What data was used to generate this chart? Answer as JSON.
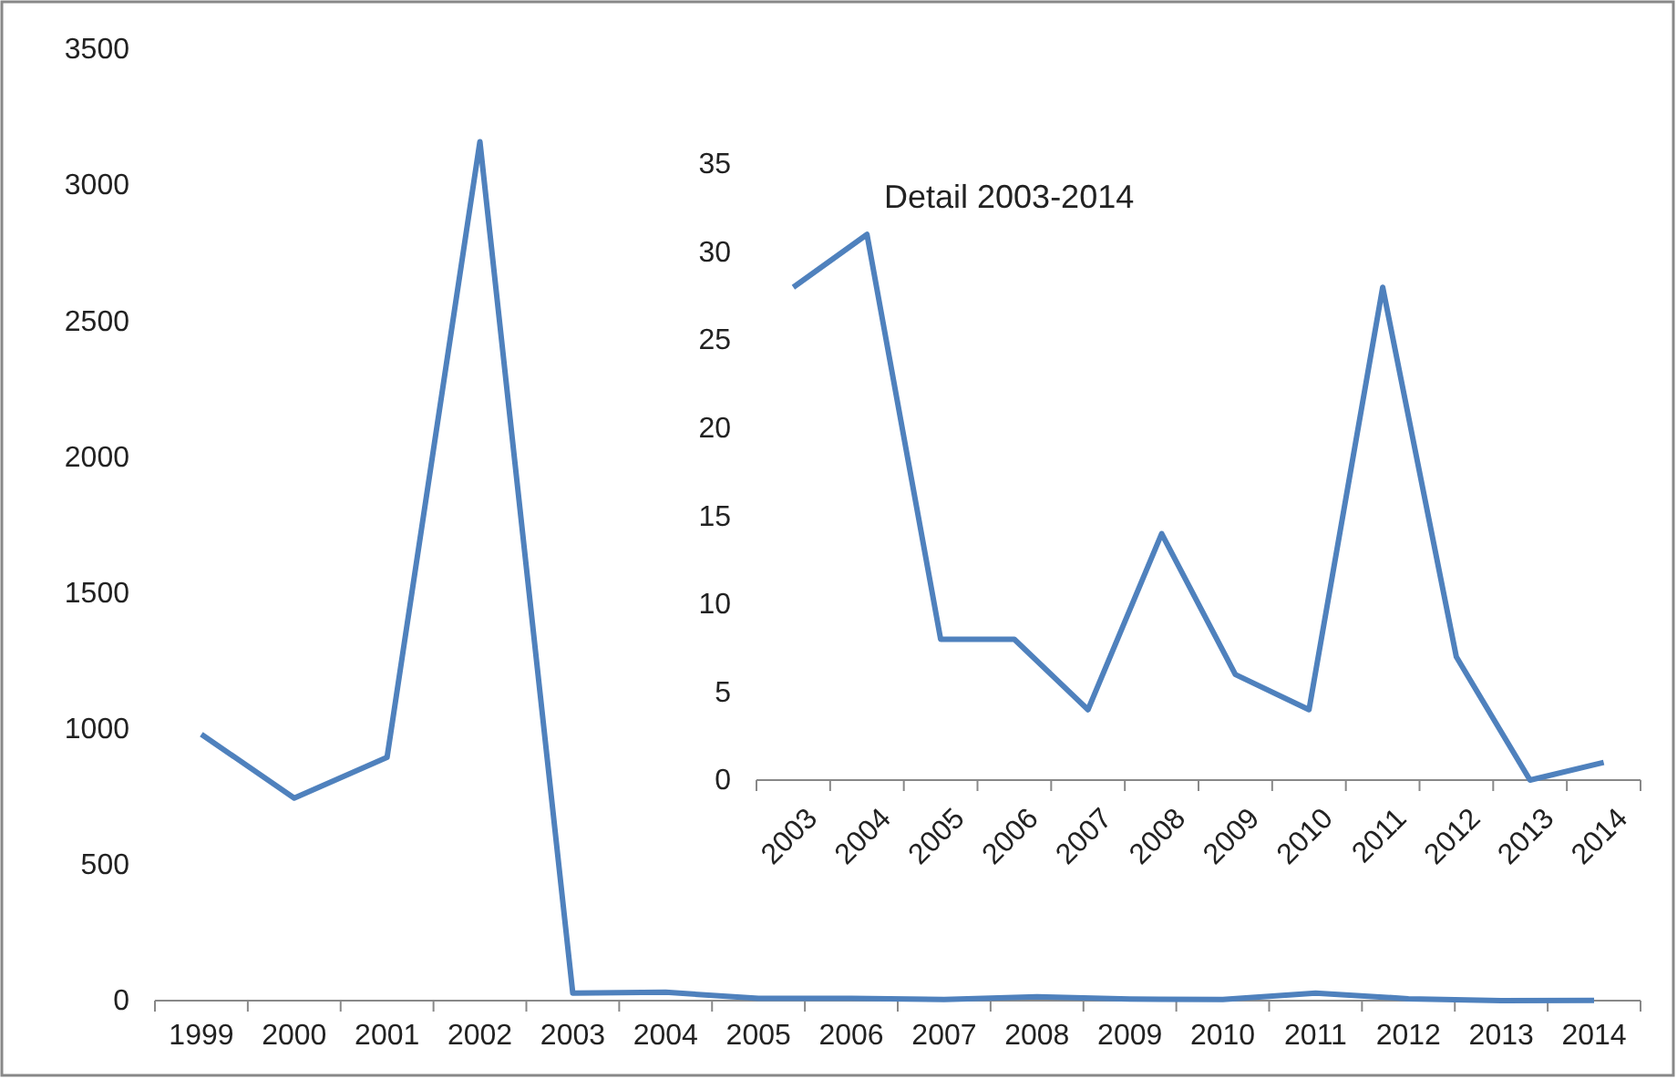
{
  "chart_data": [
    {
      "type": "line",
      "categories": [
        "1999",
        "2000",
        "2001",
        "2002",
        "2003",
        "2004",
        "2005",
        "2006",
        "2007",
        "2008",
        "2009",
        "2010",
        "2011",
        "2012",
        "2013",
        "2014"
      ],
      "series": [
        {
          "color": "#4f81bd",
          "values": [
            980,
            745,
            895,
            3160,
            28,
            31,
            8,
            8,
            4,
            14,
            6,
            4,
            28,
            7,
            0,
            1
          ]
        }
      ],
      "ylim": [
        0,
        3500
      ],
      "yticks": [
        0,
        500,
        1000,
        1500,
        2000,
        2500,
        3000,
        3500
      ],
      "line_style": "solid"
    },
    {
      "type": "line",
      "title": "Detail 2003-2014",
      "categories": [
        "2003",
        "2004",
        "2005",
        "2006",
        "2007",
        "2008",
        "2009",
        "2010",
        "2011",
        "2012",
        "2013",
        "2014"
      ],
      "series": [
        {
          "color": "#4f81bd",
          "values": [
            28,
            31,
            8,
            8,
            4,
            14,
            6,
            4,
            28,
            7,
            0,
            1
          ]
        }
      ],
      "ylim": [
        0,
        35
      ],
      "yticks": [
        0,
        5,
        10,
        15,
        20,
        25,
        30,
        35
      ],
      "line_style": "solid"
    }
  ]
}
